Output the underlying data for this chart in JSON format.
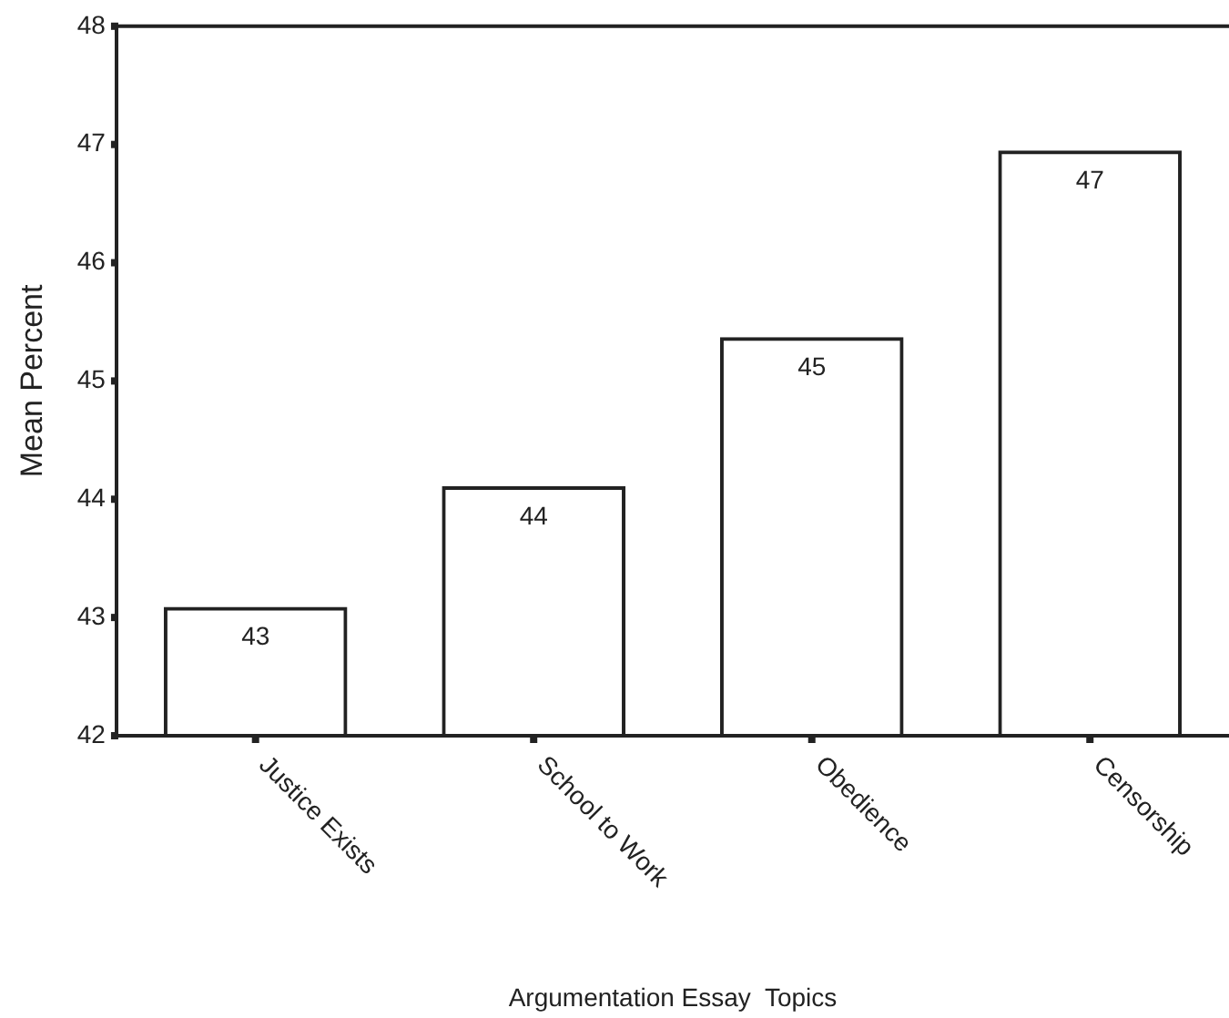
{
  "chart_data": {
    "type": "bar",
    "xlabel": "Argumentation Essay  Topics",
    "ylabel": "Mean Percent",
    "categories": [
      "Justice Exists",
      "School to Work",
      "Obedience",
      "Censorship"
    ],
    "values": [
      43.09,
      44.11,
      45.37,
      46.95
    ],
    "value_labels": [
      "43",
      "44",
      "45",
      "47"
    ],
    "color": "#222222",
    "ylim": [
      42,
      48
    ],
    "yticks": [
      42,
      43,
      44,
      45,
      46,
      47,
      48
    ],
    "grid": false,
    "legend": false
  }
}
